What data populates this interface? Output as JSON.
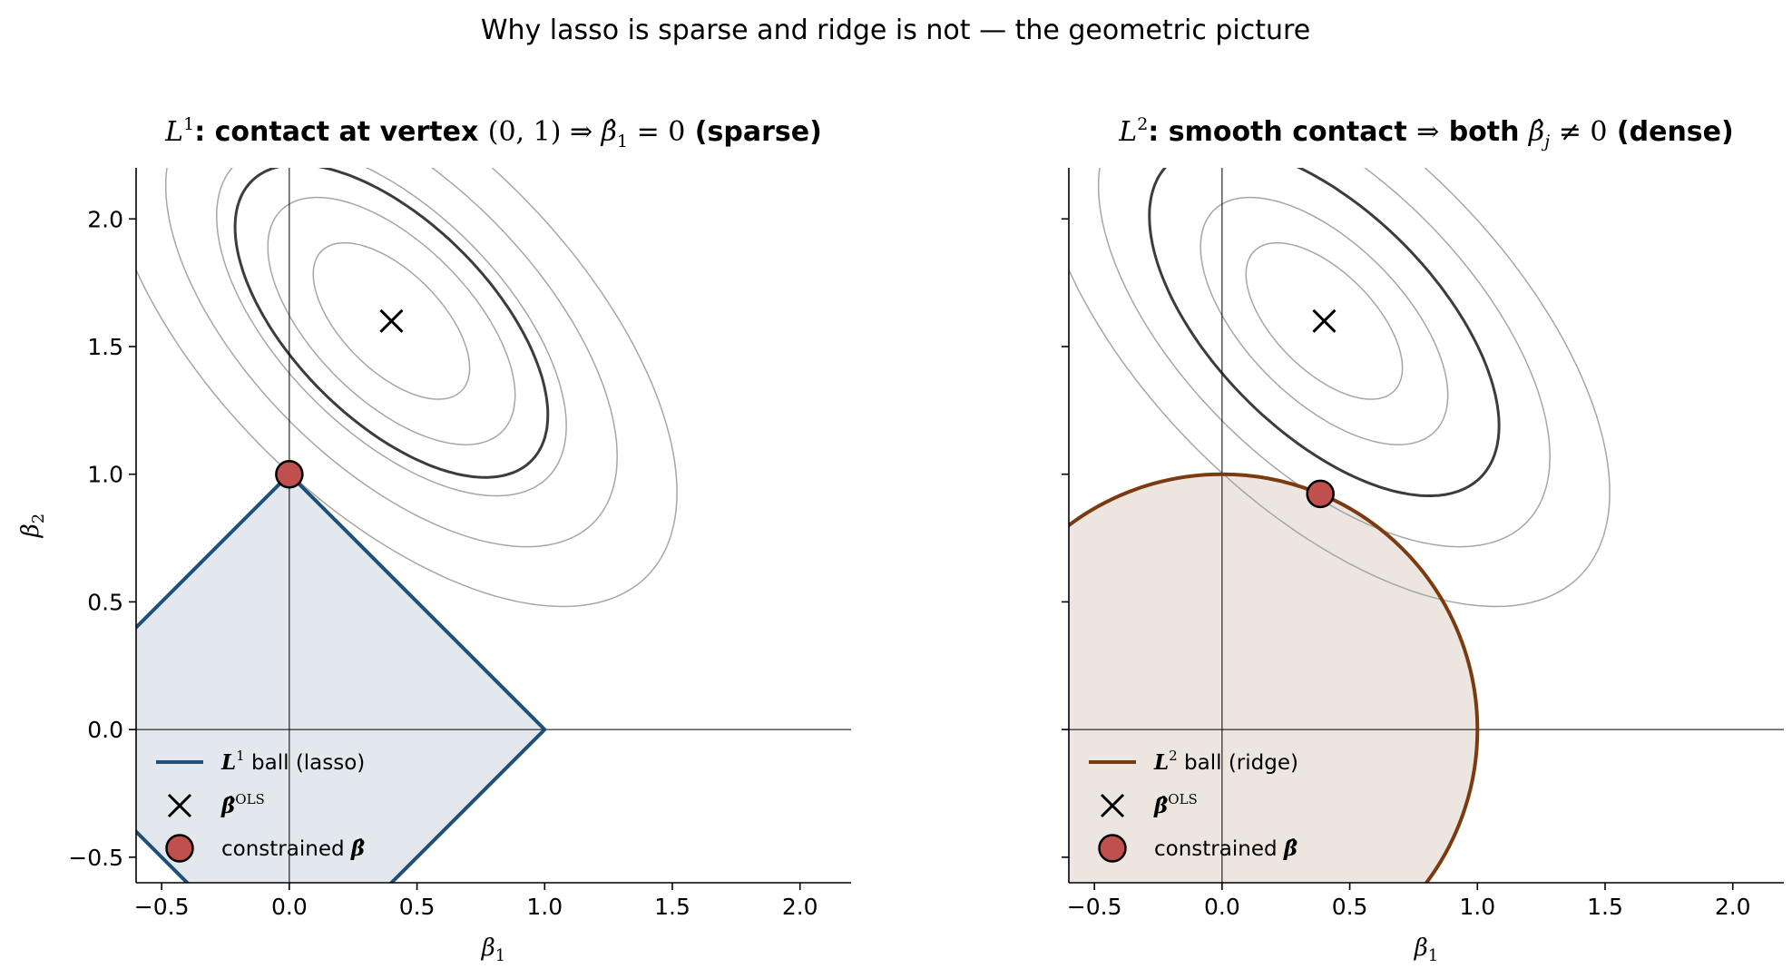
{
  "suptitle": "Why lasso is sparse and ridge is not — the geometric picture",
  "chart_data": [
    {
      "type": "contour",
      "title_parts": {
        "norm": "L",
        "norm_sup": "1",
        "bold1": ": contact at vertex ",
        "math1": "(0, 1)",
        "arrow": " ⇒ ",
        "math2": "β̂",
        "math2_sub": "1",
        "math3": " = 0",
        "bold2": " (sparse)"
      },
      "xlabel": "β",
      "xlabel_sub": "1",
      "ylabel": "β",
      "ylabel_sub": "2",
      "xlim": [
        -0.6,
        2.2
      ],
      "ylim": [
        -0.6,
        2.2
      ],
      "xticks": [
        -0.5,
        0.0,
        0.5,
        1.0,
        1.5,
        2.0
      ],
      "yticks": [
        -0.5,
        0.0,
        0.5,
        1.0,
        1.5,
        2.0
      ],
      "xtick_labels": [
        "−0.5",
        "0.0",
        "0.5",
        "1.0",
        "1.5",
        "2.0"
      ],
      "ytick_labels": [
        "−0.5",
        "0.0",
        "0.5",
        "1.0",
        "1.5",
        "2.0"
      ],
      "show_ytick_labels": true,
      "ols": [
        0.4,
        1.6
      ],
      "contour": {
        "H": [
          [
            1.0,
            0.6
          ],
          [
            0.6,
            1.0
          ]
        ],
        "levels": [
          0.06,
          0.15,
          0.3,
          0.5,
          0.8
        ],
        "highlight_level": 0.24
      },
      "constraint": {
        "shape": "l1",
        "radius": 1.0,
        "color": "#1f4e79",
        "fill": "#e3e8ee"
      },
      "constrained_solution": [
        0.0,
        1.0
      ],
      "legend_position": "lower-left",
      "legend": [
        {
          "pre": "",
          "math": "L",
          "sup": "1",
          "text": " ball (lasso)"
        },
        {
          "pre": "",
          "math": "β̂",
          "sup": "OLS",
          "text": ""
        },
        {
          "pre": "constrained ",
          "math": "β̂",
          "sup": "",
          "text": ""
        }
      ]
    },
    {
      "type": "contour",
      "title_parts": {
        "norm": "L",
        "norm_sup": "2",
        "bold1": ": smooth contact ",
        "math1": "",
        "arrow": "⇒",
        "math2": "",
        "math2_sub": "",
        "math3": "",
        "bold2": " both ",
        "math4": "β̂",
        "math4_sub": "j",
        "math5": " ≠ 0",
        "bold3": " (dense)"
      },
      "xlabel": "β",
      "xlabel_sub": "1",
      "xlim": [
        -0.6,
        2.2
      ],
      "ylim": [
        -0.6,
        2.2
      ],
      "xticks": [
        -0.5,
        0.0,
        0.5,
        1.0,
        1.5,
        2.0
      ],
      "yticks": [
        -0.5,
        0.0,
        0.5,
        1.0,
        1.5,
        2.0
      ],
      "xtick_labels": [
        "−0.5",
        "0.0",
        "0.5",
        "1.0",
        "1.5",
        "2.0"
      ],
      "ytick_labels": [],
      "show_ytick_labels": false,
      "ols": [
        0.4,
        1.6
      ],
      "contour": {
        "H": [
          [
            1.0,
            0.6
          ],
          [
            0.6,
            1.0
          ]
        ],
        "levels": [
          0.06,
          0.15,
          0.3,
          0.5,
          0.8
        ],
        "highlight_level": 0.3
      },
      "constraint": {
        "shape": "l2",
        "radius": 1.0,
        "color": "#7a3b10",
        "fill": "#ede5e0"
      },
      "constrained_solution": [
        0.385,
        0.923
      ],
      "legend_position": "lower-left",
      "legend": [
        {
          "pre": "",
          "math": "L",
          "sup": "2",
          "text": " ball (ridge)"
        },
        {
          "pre": "",
          "math": "β̂",
          "sup": "OLS",
          "text": ""
        },
        {
          "pre": "constrained ",
          "math": "β̂",
          "sup": "",
          "text": ""
        }
      ]
    }
  ],
  "colors": {
    "contour": "#a6a6a6",
    "highlight_contour": "#3c3c3c",
    "solution_fill": "#c0504d",
    "axis": "#000000"
  }
}
